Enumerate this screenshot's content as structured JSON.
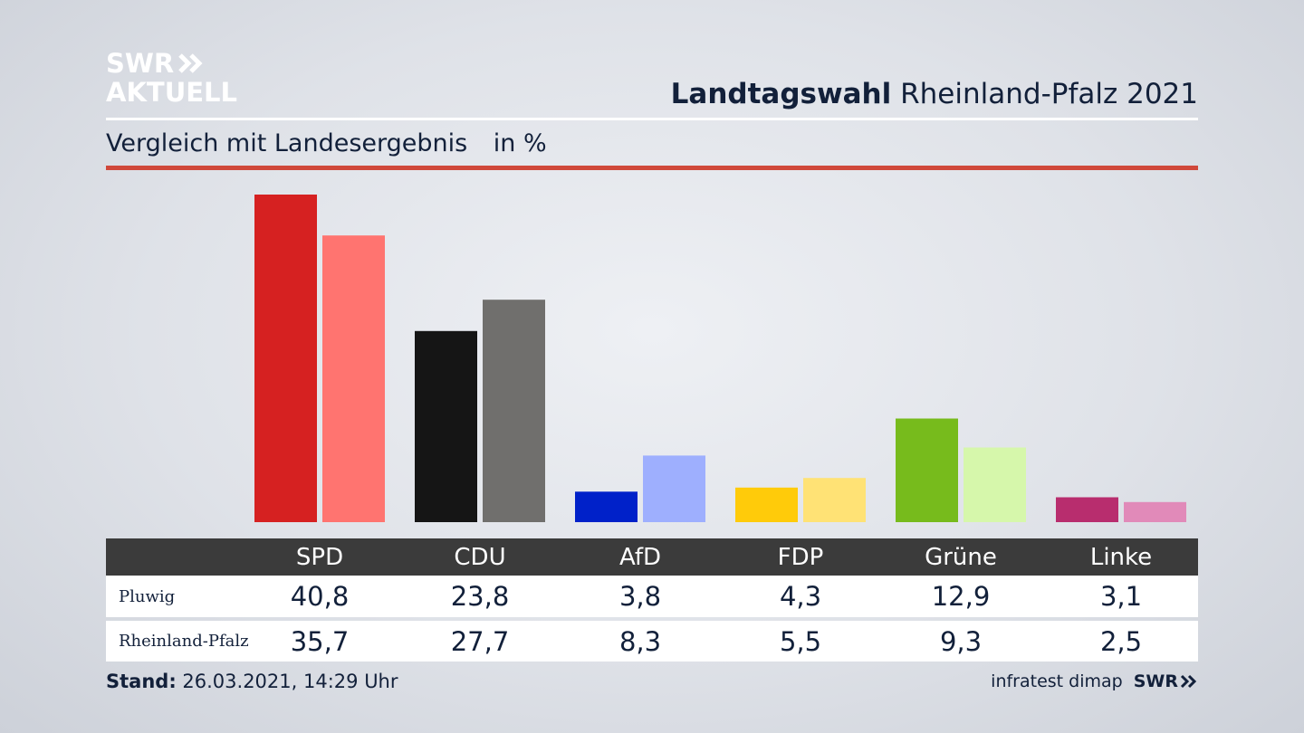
{
  "header": {
    "logo_line1": "SWR",
    "logo_line2": "AKTUELL",
    "title_bold": "Landtagswahl",
    "title_rest": "Rheinland-Pfalz 2021",
    "subtitle": "Vergleich mit Landesergebnis",
    "unit": "in %"
  },
  "chart_data": {
    "type": "bar",
    "title": "Landtagswahl Rheinland-Pfalz 2021",
    "subtitle": "Vergleich mit Landesergebnis in %",
    "categories": [
      "SPD",
      "CDU",
      "AfD",
      "FDP",
      "Grüne",
      "Linke"
    ],
    "series": [
      {
        "name": "Pluwig",
        "values": [
          40.8,
          23.8,
          3.8,
          4.3,
          12.9,
          3.1
        ],
        "display": [
          "40,8",
          "23,8",
          "3,8",
          "4,3",
          "12,9",
          "3,1"
        ],
        "colors": [
          "#d62121",
          "#151515",
          "#0021c9",
          "#ffcb0a",
          "#77bb1c",
          "#b82d6e"
        ]
      },
      {
        "name": "Rheinland-Pfalz",
        "values": [
          35.7,
          27.7,
          8.3,
          5.5,
          9.3,
          2.5
        ],
        "display": [
          "35,7",
          "27,7",
          "8,3",
          "5,5",
          "9,3",
          "2,5"
        ],
        "colors": [
          "#ff7470",
          "#706f6d",
          "#9eaffe",
          "#ffe275",
          "#d6f7ab",
          "#e18ab9"
        ]
      }
    ],
    "ylim": [
      0,
      40.8
    ],
    "grid": false,
    "legend": "table below chart"
  },
  "footer": {
    "stand_label": "Stand:",
    "stand_value": "26.03.2021, 14:29 Uhr",
    "source": "infratest dimap",
    "brand": "SWR"
  }
}
